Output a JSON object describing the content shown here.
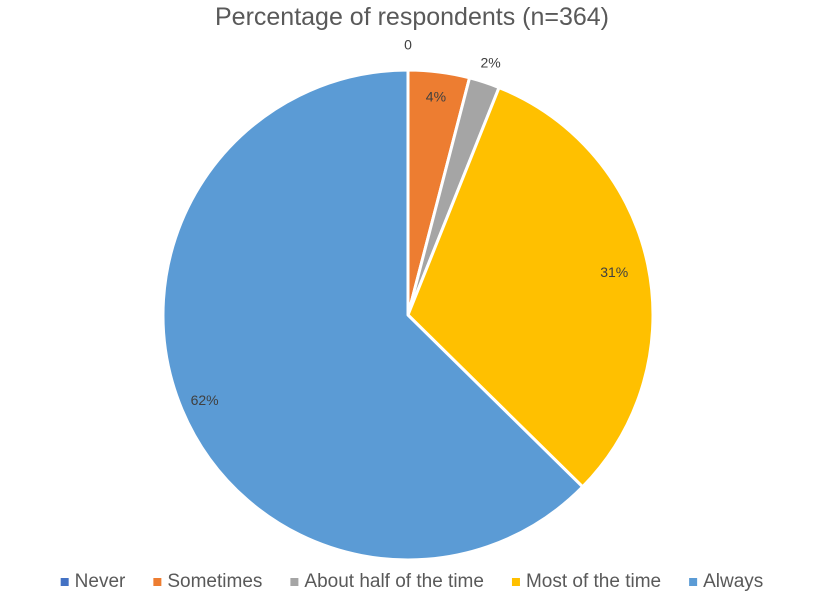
{
  "chart_data": {
    "type": "pie",
    "title": "Percentage of respondents (n=364)",
    "categories": [
      "Never",
      "Sometimes",
      "About half of the time",
      "Most of the time",
      "Always"
    ],
    "values": [
      0,
      4,
      2,
      31,
      62
    ],
    "labels": [
      "0",
      "4%",
      "2%",
      "31%",
      "62%"
    ],
    "colors": [
      "#4472C4",
      "#ED7D31",
      "#A5A5A5",
      "#FFC000",
      "#5B9BD5"
    ],
    "legend_position": "bottom",
    "start_angle": "12 o'clock",
    "direction": "clockwise"
  }
}
